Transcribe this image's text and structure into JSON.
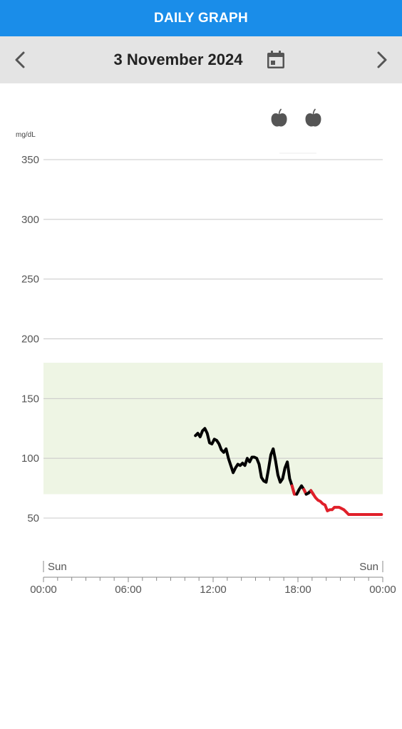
{
  "header": {
    "title": "DAILY GRAPH"
  },
  "datebar": {
    "date": "3 November 2024",
    "prev_icon": "chevron-left-icon",
    "next_icon": "chevron-right-icon",
    "calendar_icon": "calendar-icon"
  },
  "chart_data": {
    "type": "line",
    "ylabel": "mg/dL",
    "ylim": [
      50,
      350
    ],
    "yticks": [
      "350",
      "300",
      "250",
      "200",
      "150",
      "100",
      "50"
    ],
    "xlim": [
      "00:00",
      "24:00"
    ],
    "xticks": [
      "00:00",
      "06:00",
      "12:00",
      "18:00",
      "00:00"
    ],
    "day_labels": [
      "Sun",
      "Sun"
    ],
    "target_range": [
      70,
      180
    ],
    "low_threshold": 70,
    "colors": {
      "normal": "#000000",
      "low": "#e0202a",
      "target_fill": "#eef5e4",
      "grid": "#c8c8c8"
    },
    "meal_events": [
      {
        "time": "16:40",
        "icon": "apple-icon"
      },
      {
        "time": "19:05",
        "icon": "apple-icon"
      }
    ],
    "series": [
      {
        "x": [
          "10:45",
          "10:55",
          "11:05",
          "11:15",
          "11:25",
          "11:35",
          "11:45",
          "11:55",
          "12:05",
          "12:15",
          "12:25",
          "12:35",
          "12:45",
          "12:55",
          "13:05",
          "13:15",
          "13:25",
          "13:35",
          "13:45",
          "13:55",
          "14:05",
          "14:15",
          "14:25",
          "14:35",
          "14:45",
          "14:55",
          "15:05",
          "15:15",
          "15:25",
          "15:35",
          "15:45",
          "15:55",
          "16:05",
          "16:15",
          "16:25",
          "16:35",
          "16:45",
          "16:55",
          "17:05",
          "17:15",
          "17:25",
          "17:35",
          "17:45",
          "17:55",
          "18:05",
          "18:15",
          "18:25",
          "18:35",
          "18:45",
          "18:55",
          "19:05",
          "19:15",
          "19:25",
          "19:35",
          "19:45",
          "19:55",
          "20:05",
          "20:15",
          "20:25",
          "20:35",
          "20:45",
          "20:55",
          "21:05",
          "21:15",
          "21:25",
          "21:35",
          "21:45",
          "21:55",
          "22:05",
          "22:15",
          "22:25",
          "22:35",
          "22:45",
          "22:55",
          "23:05",
          "23:15",
          "23:25",
          "23:35",
          "23:45",
          "23:55"
        ],
        "y": [
          119,
          121,
          118,
          123,
          125,
          121,
          113,
          112,
          116,
          115,
          112,
          107,
          105,
          108,
          100,
          94,
          88,
          92,
          95,
          94,
          96,
          94,
          100,
          97,
          101,
          101,
          100,
          95,
          84,
          81,
          80,
          91,
          103,
          108,
          98,
          86,
          80,
          83,
          92,
          97,
          83,
          77,
          70,
          70,
          74,
          77,
          74,
          70,
          71,
          73,
          70,
          67,
          65,
          64,
          62,
          61,
          56,
          57,
          57,
          59,
          59,
          59,
          58,
          57,
          55,
          53,
          53,
          53,
          53,
          53,
          53,
          53,
          53,
          53,
          53,
          53,
          53,
          53,
          53,
          53
        ]
      }
    ]
  }
}
